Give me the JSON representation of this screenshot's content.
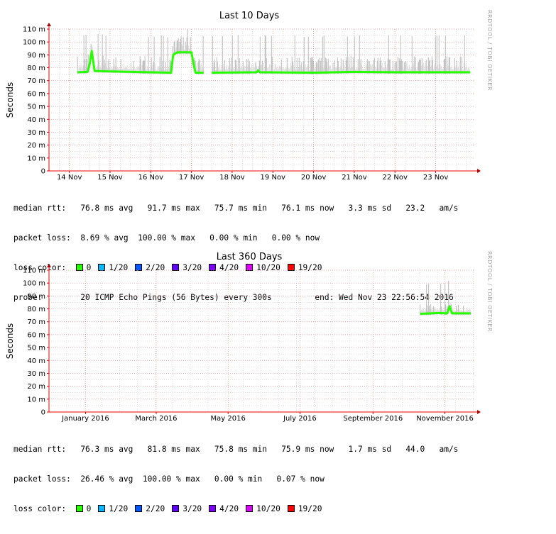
{
  "chart_data": [
    {
      "type": "area",
      "title": "Last 10 Days",
      "ylabel": "Seconds",
      "watermark": "RRDTOOL / TOBI OETIKER",
      "ylim": [
        0,
        0.11
      ],
      "yticks": [
        {
          "v": 0,
          "label": "0"
        },
        {
          "v": 0.01,
          "label": "10 m"
        },
        {
          "v": 0.02,
          "label": "20 m"
        },
        {
          "v": 0.03,
          "label": "30 m"
        },
        {
          "v": 0.04,
          "label": "40 m"
        },
        {
          "v": 0.05,
          "label": "50 m"
        },
        {
          "v": 0.06,
          "label": "60 m"
        },
        {
          "v": 0.07,
          "label": "70 m"
        },
        {
          "v": 0.08,
          "label": "80 m"
        },
        {
          "v": 0.09,
          "label": "90 m"
        },
        {
          "v": 0.1,
          "label": "100 m"
        },
        {
          "v": 0.11,
          "label": "110 m"
        }
      ],
      "xlim": [
        13.5,
        23.95
      ],
      "xticks": [
        {
          "v": 14,
          "label": "14 Nov"
        },
        {
          "v": 15,
          "label": "15 Nov"
        },
        {
          "v": 16,
          "label": "16 Nov"
        },
        {
          "v": 17,
          "label": "17 Nov"
        },
        {
          "v": 18,
          "label": "18 Nov"
        },
        {
          "v": 19,
          "label": "19 Nov"
        },
        {
          "v": 20,
          "label": "20 Nov"
        },
        {
          "v": 21,
          "label": "21 Nov"
        },
        {
          "v": 22,
          "label": "22 Nov"
        },
        {
          "v": 23,
          "label": "23 Nov"
        }
      ],
      "median": [
        {
          "x": 14.2,
          "y": 0.0765
        },
        {
          "x": 14.45,
          "y": 0.0768
        },
        {
          "x": 14.5,
          "y": 0.083
        },
        {
          "x": 14.55,
          "y": 0.093
        },
        {
          "x": 14.62,
          "y": 0.0775
        },
        {
          "x": 15.5,
          "y": 0.0768
        },
        {
          "x": 16.5,
          "y": 0.0762
        },
        {
          "x": 16.55,
          "y": 0.09
        },
        {
          "x": 16.65,
          "y": 0.092
        },
        {
          "x": 17.0,
          "y": 0.092
        },
        {
          "x": 17.05,
          "y": 0.083
        },
        {
          "x": 17.1,
          "y": 0.0762
        },
        {
          "x": 17.3,
          "y": 0.0762
        },
        {
          "x": 17.45,
          "y": null
        },
        {
          "x": 17.5,
          "y": 0.0762
        },
        {
          "x": 18.6,
          "y": 0.0765
        },
        {
          "x": 18.64,
          "y": 0.078
        },
        {
          "x": 18.68,
          "y": 0.0765
        },
        {
          "x": 20.0,
          "y": 0.0762
        },
        {
          "x": 21.0,
          "y": 0.0768
        },
        {
          "x": 22.0,
          "y": 0.0765
        },
        {
          "x": 23.0,
          "y": 0.0765
        },
        {
          "x": 23.85,
          "y": 0.0765
        }
      ],
      "stats": [
        {
          "label": "median rtt:",
          "text": "76.8 ms avg   91.7 ms max   75.7 ms min   76.1 ms now   3.3 ms sd   23.2   am/s"
        },
        {
          "label": "packet loss:",
          "text": "8.69 % avg  100.00 % max   0.00 % min   0.00 % now"
        }
      ],
      "probe": {
        "label": "probe:",
        "text": "20 ICMP Echo Pings (56 Bytes) every 300s",
        "end": "end: Wed Nov 23 22:56:54 2016"
      }
    },
    {
      "type": "area",
      "title": "Last 360 Days",
      "ylabel": "Seconds",
      "watermark": "RRDTOOL / TOBI OETIKER",
      "ylim": [
        0,
        0.11
      ],
      "yticks": [
        {
          "v": 0,
          "label": "0"
        },
        {
          "v": 0.01,
          "label": "10 m"
        },
        {
          "v": 0.02,
          "label": "20 m"
        },
        {
          "v": 0.03,
          "label": "30 m"
        },
        {
          "v": 0.04,
          "label": "40 m"
        },
        {
          "v": 0.05,
          "label": "50 m"
        },
        {
          "v": 0.06,
          "label": "60 m"
        },
        {
          "v": 0.07,
          "label": "70 m"
        },
        {
          "v": 0.08,
          "label": "80 m"
        },
        {
          "v": 0.09,
          "label": "90 m"
        },
        {
          "v": 0.1,
          "label": "100 m"
        },
        {
          "v": 0.11,
          "label": "110 m"
        }
      ],
      "xlim": [
        "2015-12-01",
        "2016-11-26"
      ],
      "xticks": [
        {
          "v": "2016-01-01",
          "label": "January 2016"
        },
        {
          "v": "2016-03-01",
          "label": "March 2016"
        },
        {
          "v": "2016-05-01",
          "label": "May 2016"
        },
        {
          "v": "2016-07-01",
          "label": "July 2016"
        },
        {
          "v": "2016-09-01",
          "label": "September 2016"
        },
        {
          "v": "2016-11-01",
          "label": "November 2016"
        }
      ],
      "median": [
        {
          "x": "2016-10-11",
          "y": 0.0762
        },
        {
          "x": "2016-10-20",
          "y": 0.0765
        },
        {
          "x": "2016-10-27",
          "y": 0.0768
        },
        {
          "x": "2016-11-03",
          "y": 0.0765
        },
        {
          "x": "2016-11-05",
          "y": 0.082
        },
        {
          "x": "2016-11-07",
          "y": 0.0765
        },
        {
          "x": "2016-11-14",
          "y": 0.0765
        },
        {
          "x": "2016-11-23",
          "y": 0.0765
        }
      ],
      "stats": [
        {
          "label": "median rtt:",
          "text": "76.3 ms avg   81.8 ms max   75.8 ms min   75.9 ms now   1.7 ms sd   44.0   am/s"
        },
        {
          "label": "packet loss:",
          "text": "26.46 % avg  100.00 % max   0.00 % min   0.07 % now"
        }
      ]
    }
  ],
  "loss_color": {
    "label": "loss color:",
    "items": [
      {
        "label": "0",
        "color": "#26ff00"
      },
      {
        "label": "1/20",
        "color": "#00b8ff"
      },
      {
        "label": "2/20",
        "color": "#0059ff"
      },
      {
        "label": "3/20",
        "color": "#5e00ff"
      },
      {
        "label": "4/20",
        "color": "#7e00ff"
      },
      {
        "label": "10/20",
        "color": "#dd00ff"
      },
      {
        "label": "19/20",
        "color": "#ff0000"
      }
    ]
  }
}
